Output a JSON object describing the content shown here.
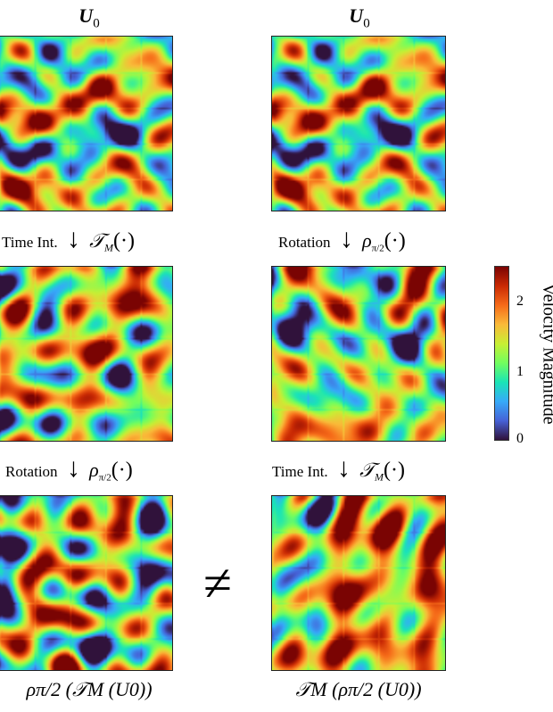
{
  "titles": {
    "left": "U",
    "right": "U",
    "subscript": "0"
  },
  "operations": {
    "left_1": {
      "label": "Time Int.",
      "symbol": "𝒯",
      "sub": "M",
      "arg": "(·)"
    },
    "left_2": {
      "label": "Rotation",
      "symbol": "ρ",
      "sub": "π/2",
      "arg": "(·)"
    },
    "right_1": {
      "label": "Rotation",
      "symbol": "ρ",
      "sub": "π/2",
      "arg": "(·)"
    },
    "right_2": {
      "label": "Time Int.",
      "symbol": "𝒯",
      "sub": "M",
      "arg": "(·)"
    }
  },
  "arrow_glyph": "↓",
  "not_equal": "≠",
  "captions": {
    "left": "ρπ/2 (𝒯M (U0))",
    "right": "𝒯M (ρπ/2 (U0))"
  },
  "colorbar": {
    "label": "Velocity Magnitude",
    "ticks": [
      "0",
      "1",
      "2"
    ],
    "range": [
      0,
      2.45
    ],
    "colormap": "turbo"
  }
}
